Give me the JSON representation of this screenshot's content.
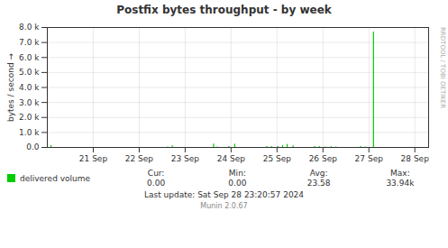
{
  "chart_data": {
    "type": "stem",
    "title": "Postfix bytes throughput - by week",
    "y_label": "bytes / second",
    "x": [
      0.08,
      2.62,
      2.72,
      3.62,
      3.7,
      3.95,
      4.08,
      4.78,
      4.88,
      5.02,
      5.12,
      5.22,
      5.35,
      5.82,
      5.92,
      6.05,
      6.18,
      6.28,
      6.82,
      6.92,
      7.1
    ],
    "series": [
      {
        "name": "delivered volume",
        "color": "#00cc00",
        "values": [
          120,
          35,
          110,
          220,
          35,
          55,
          220,
          55,
          65,
          55,
          120,
          200,
          100,
          55,
          55,
          35,
          55,
          35,
          55,
          35,
          7700
        ]
      }
    ],
    "xlim": [
      0.0,
      8.3
    ],
    "xticks": [
      {
        "value": 1,
        "label": "21 Sep"
      },
      {
        "value": 2,
        "label": "22 Sep"
      },
      {
        "value": 3,
        "label": "23 Sep"
      },
      {
        "value": 4,
        "label": "24 Sep"
      },
      {
        "value": 5,
        "label": "25 Sep"
      },
      {
        "value": 6,
        "label": "26 Sep"
      },
      {
        "value": 7,
        "label": "27 Sep"
      },
      {
        "value": 8,
        "label": "28 Sep"
      }
    ],
    "ylim": [
      0,
      8000
    ],
    "yticks": [
      {
        "value": 0,
        "label": "0.0"
      },
      {
        "value": 1000,
        "label": "1.0 k"
      },
      {
        "value": 2000,
        "label": "2.0 k"
      },
      {
        "value": 3000,
        "label": "3.0 k"
      },
      {
        "value": 4000,
        "label": "4.0 k"
      },
      {
        "value": 5000,
        "label": "5.0 k"
      },
      {
        "value": 6000,
        "label": "6.0 k"
      },
      {
        "value": 7000,
        "label": "7.0 k"
      },
      {
        "value": 8000,
        "label": "8.0 k"
      }
    ],
    "grid": true,
    "legend": "bottom",
    "stats": {
      "labels": [
        "Cur:",
        "Min:",
        "Avg:",
        "Max:"
      ],
      "values": [
        "0.00",
        "0.00",
        "23.58",
        "33.94k"
      ]
    },
    "annotations": [
      "Last update: Sat Sep 28 23:20:57 2024",
      "Munin 2.0.67",
      "RRDTOOL / TOBI OETIKER"
    ]
  }
}
